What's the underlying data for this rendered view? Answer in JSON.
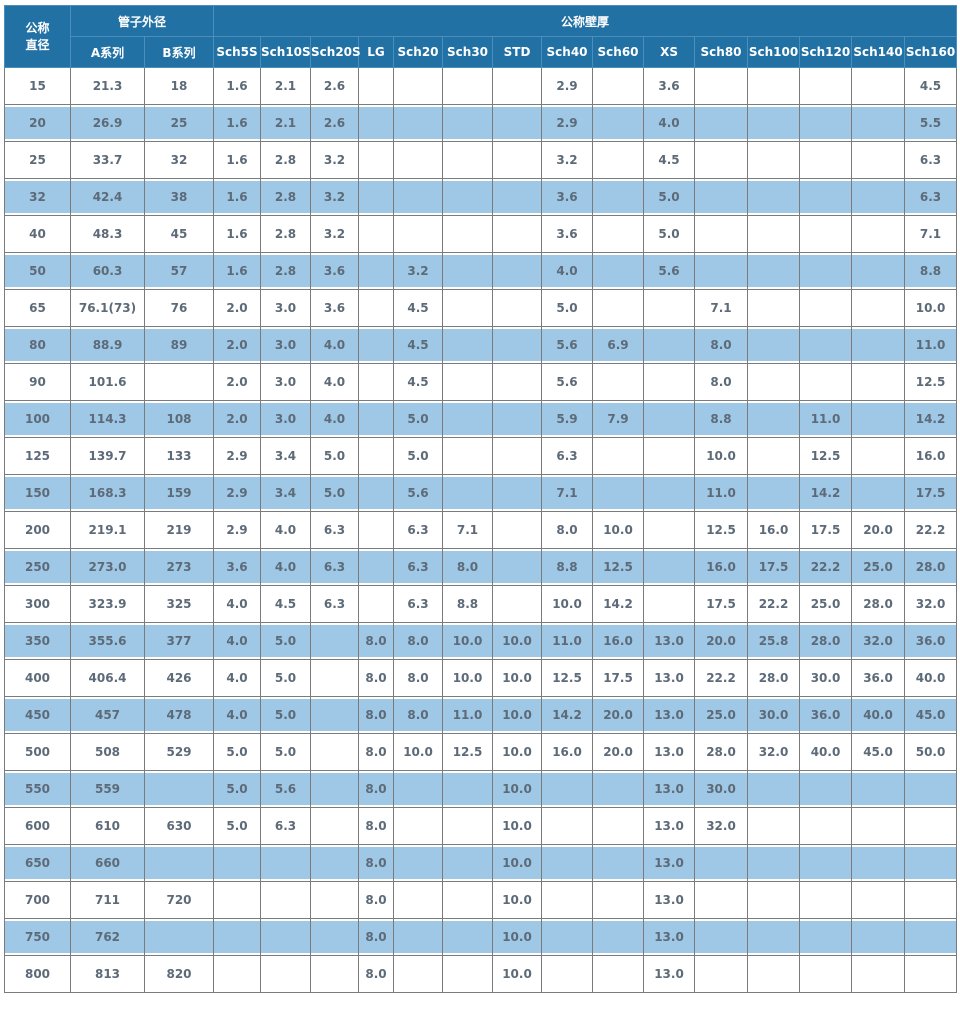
{
  "colors": {
    "header_bg": "#2171a5",
    "header_border": "#4a8ebc",
    "header_text": "#ffffff",
    "alt_row_bg": "#9ec8e5",
    "grid_line": "#7b7b7b",
    "body_text": "#5d6a78"
  },
  "table": {
    "header": {
      "col_dn": "公称直径",
      "col_od_group": "管子外径",
      "col_od_a": "A系列",
      "col_od_b": "B系列",
      "col_wt_group": "公称壁厚",
      "schedules": [
        "Sch5S",
        "Sch10S",
        "Sch20S",
        "LG",
        "Sch20",
        "Sch30",
        "STD",
        "Sch40",
        "Sch60",
        "XS",
        "Sch80",
        "Sch100",
        "Sch120",
        "Sch140",
        "Sch160"
      ]
    },
    "rows": [
      [
        "15",
        "21.3",
        "18",
        "1.6",
        "2.1",
        "2.6",
        "",
        "",
        "",
        "",
        "2.9",
        "",
        "3.6",
        "",
        "",
        "",
        "",
        "4.5"
      ],
      [
        "20",
        "26.9",
        "25",
        "1.6",
        "2.1",
        "2.6",
        "",
        "",
        "",
        "",
        "2.9",
        "",
        "4.0",
        "",
        "",
        "",
        "",
        "5.5"
      ],
      [
        "25",
        "33.7",
        "32",
        "1.6",
        "2.8",
        "3.2",
        "",
        "",
        "",
        "",
        "3.2",
        "",
        "4.5",
        "",
        "",
        "",
        "",
        "6.3"
      ],
      [
        "32",
        "42.4",
        "38",
        "1.6",
        "2.8",
        "3.2",
        "",
        "",
        "",
        "",
        "3.6",
        "",
        "5.0",
        "",
        "",
        "",
        "",
        "6.3"
      ],
      [
        "40",
        "48.3",
        "45",
        "1.6",
        "2.8",
        "3.2",
        "",
        "",
        "",
        "",
        "3.6",
        "",
        "5.0",
        "",
        "",
        "",
        "",
        "7.1"
      ],
      [
        "50",
        "60.3",
        "57",
        "1.6",
        "2.8",
        "3.6",
        "",
        "3.2",
        "",
        "",
        "4.0",
        "",
        "5.6",
        "",
        "",
        "",
        "",
        "8.8"
      ],
      [
        "65",
        "76.1(73)",
        "76",
        "2.0",
        "3.0",
        "3.6",
        "",
        "4.5",
        "",
        "",
        "5.0",
        "",
        "",
        "7.1",
        "",
        "",
        "",
        "10.0"
      ],
      [
        "80",
        "88.9",
        "89",
        "2.0",
        "3.0",
        "4.0",
        "",
        "4.5",
        "",
        "",
        "5.6",
        "6.9",
        "",
        "8.0",
        "",
        "",
        "",
        "11.0"
      ],
      [
        "90",
        "101.6",
        "",
        "2.0",
        "3.0",
        "4.0",
        "",
        "4.5",
        "",
        "",
        "5.6",
        "",
        "",
        "8.0",
        "",
        "",
        "",
        "12.5"
      ],
      [
        "100",
        "114.3",
        "108",
        "2.0",
        "3.0",
        "4.0",
        "",
        "5.0",
        "",
        "",
        "5.9",
        "7.9",
        "",
        "8.8",
        "",
        "11.0",
        "",
        "14.2"
      ],
      [
        "125",
        "139.7",
        "133",
        "2.9",
        "3.4",
        "5.0",
        "",
        "5.0",
        "",
        "",
        "6.3",
        "",
        "",
        "10.0",
        "",
        "12.5",
        "",
        "16.0"
      ],
      [
        "150",
        "168.3",
        "159",
        "2.9",
        "3.4",
        "5.0",
        "",
        "5.6",
        "",
        "",
        "7.1",
        "",
        "",
        "11.0",
        "",
        "14.2",
        "",
        "17.5"
      ],
      [
        "200",
        "219.1",
        "219",
        "2.9",
        "4.0",
        "6.3",
        "",
        "6.3",
        "7.1",
        "",
        "8.0",
        "10.0",
        "",
        "12.5",
        "16.0",
        "17.5",
        "20.0",
        "22.2"
      ],
      [
        "250",
        "273.0",
        "273",
        "3.6",
        "4.0",
        "6.3",
        "",
        "6.3",
        "8.0",
        "",
        "8.8",
        "12.5",
        "",
        "16.0",
        "17.5",
        "22.2",
        "25.0",
        "28.0"
      ],
      [
        "300",
        "323.9",
        "325",
        "4.0",
        "4.5",
        "6.3",
        "",
        "6.3",
        "8.8",
        "",
        "10.0",
        "14.2",
        "",
        "17.5",
        "22.2",
        "25.0",
        "28.0",
        "32.0"
      ],
      [
        "350",
        "355.6",
        "377",
        "4.0",
        "5.0",
        "",
        "8.0",
        "8.0",
        "10.0",
        "10.0",
        "11.0",
        "16.0",
        "13.0",
        "20.0",
        "25.8",
        "28.0",
        "32.0",
        "36.0"
      ],
      [
        "400",
        "406.4",
        "426",
        "4.0",
        "5.0",
        "",
        "8.0",
        "8.0",
        "10.0",
        "10.0",
        "12.5",
        "17.5",
        "13.0",
        "22.2",
        "28.0",
        "30.0",
        "36.0",
        "40.0"
      ],
      [
        "450",
        "457",
        "478",
        "4.0",
        "5.0",
        "",
        "8.0",
        "8.0",
        "11.0",
        "10.0",
        "14.2",
        "20.0",
        "13.0",
        "25.0",
        "30.0",
        "36.0",
        "40.0",
        "45.0"
      ],
      [
        "500",
        "508",
        "529",
        "5.0",
        "5.0",
        "",
        "8.0",
        "10.0",
        "12.5",
        "10.0",
        "16.0",
        "20.0",
        "13.0",
        "28.0",
        "32.0",
        "40.0",
        "45.0",
        "50.0"
      ],
      [
        "550",
        "559",
        "",
        "5.0",
        "5.6",
        "",
        "8.0",
        "",
        "",
        "10.0",
        "",
        "",
        "13.0",
        "30.0",
        "",
        "",
        "",
        ""
      ],
      [
        "600",
        "610",
        "630",
        "5.0",
        "6.3",
        "",
        "8.0",
        "",
        "",
        "10.0",
        "",
        "",
        "13.0",
        "32.0",
        "",
        "",
        "",
        ""
      ],
      [
        "650",
        "660",
        "",
        "",
        "",
        "",
        "8.0",
        "",
        "",
        "10.0",
        "",
        "",
        "13.0",
        "",
        "",
        "",
        "",
        ""
      ],
      [
        "700",
        "711",
        "720",
        "",
        "",
        "",
        "8.0",
        "",
        "",
        "10.0",
        "",
        "",
        "13.0",
        "",
        "",
        "",
        "",
        ""
      ],
      [
        "750",
        "762",
        "",
        "",
        "",
        "",
        "8.0",
        "",
        "",
        "10.0",
        "",
        "",
        "13.0",
        "",
        "",
        "",
        "",
        ""
      ],
      [
        "800",
        "813",
        "820",
        "",
        "",
        "",
        "8.0",
        "",
        "",
        "10.0",
        "",
        "",
        "13.0",
        "",
        "",
        "",
        "",
        ""
      ]
    ]
  }
}
